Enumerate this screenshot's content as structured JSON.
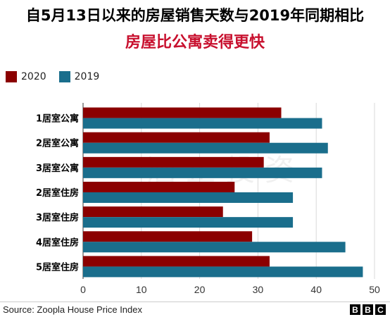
{
  "chart_data": {
    "type": "bar",
    "orientation": "horizontal",
    "title": "自5月13日以来的房屋销售天数与2019年同期相比",
    "subtitle": "房屋比公寓卖得更快",
    "categories": [
      "1居室公寓",
      "2居室公寓",
      "3居室公寓",
      "2居室住房",
      "3居室住房",
      "4居室住房",
      "5居室住房"
    ],
    "series": [
      {
        "name": "2020",
        "color": "#8b0000",
        "values": [
          34,
          32,
          31,
          26,
          24,
          29,
          32
        ]
      },
      {
        "name": "2019",
        "color": "#1a6e8c",
        "values": [
          41,
          42,
          41,
          36,
          36,
          45,
          48
        ]
      }
    ],
    "xlim": [
      0,
      50
    ],
    "xticks": [
      0,
      10,
      20,
      30,
      40,
      50
    ],
    "grid": true,
    "legend_position": "top-left"
  },
  "source": "Source: Zoopla House Price Index",
  "logo": [
    "B",
    "B",
    "C"
  ],
  "watermark": "酒正投资"
}
